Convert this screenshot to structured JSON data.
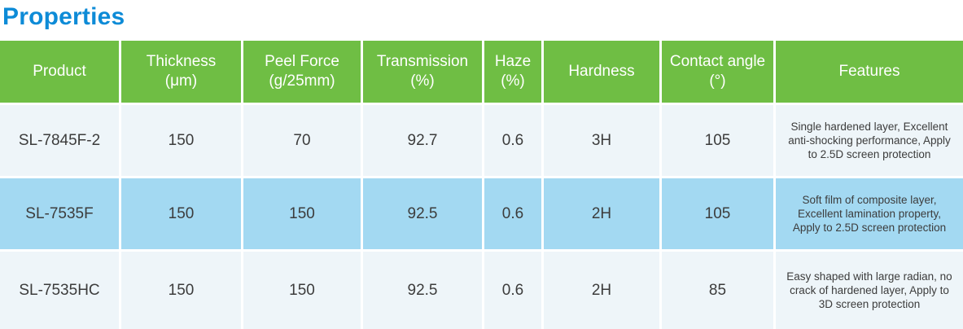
{
  "page": {
    "title": "Properties"
  },
  "colors": {
    "title_blue": "#0d8bd7",
    "header_green": "#6fbe44",
    "row_light_blue": "#eef5f9",
    "row_highlight_blue": "#a3d9f2",
    "cell_text": "#3c3c3c",
    "header_text": "#ffffff"
  },
  "table": {
    "columns": [
      {
        "label": "Product"
      },
      {
        "label": "Thickness\n(μm)"
      },
      {
        "label": "Peel Force\n(g/25mm)"
      },
      {
        "label": "Transmission\n(%)"
      },
      {
        "label": "Haze\n(%)"
      },
      {
        "label": "Hardness"
      },
      {
        "label": "Contact angle\n(°)"
      },
      {
        "label": "Features"
      }
    ],
    "rows": [
      {
        "highlighted": false,
        "cells": [
          "SL-7845F-2",
          "150",
          "70",
          "92.7",
          "0.6",
          "3H",
          "105",
          "Single hardened layer, Excellent anti-shocking performance, Apply to 2.5D screen protection"
        ]
      },
      {
        "highlighted": true,
        "cells": [
          "SL-7535F",
          "150",
          "150",
          "92.5",
          "0.6",
          "2H",
          "105",
          "Soft film of composite layer, Excellent lamination property, Apply to 2.5D screen protection"
        ]
      },
      {
        "highlighted": false,
        "cells": [
          "SL-7535HC",
          "150",
          "150",
          "92.5",
          "0.6",
          "2H",
          "85",
          "Easy shaped with large radian, no crack of hardened layer, Apply to 3D screen protection"
        ]
      }
    ]
  }
}
